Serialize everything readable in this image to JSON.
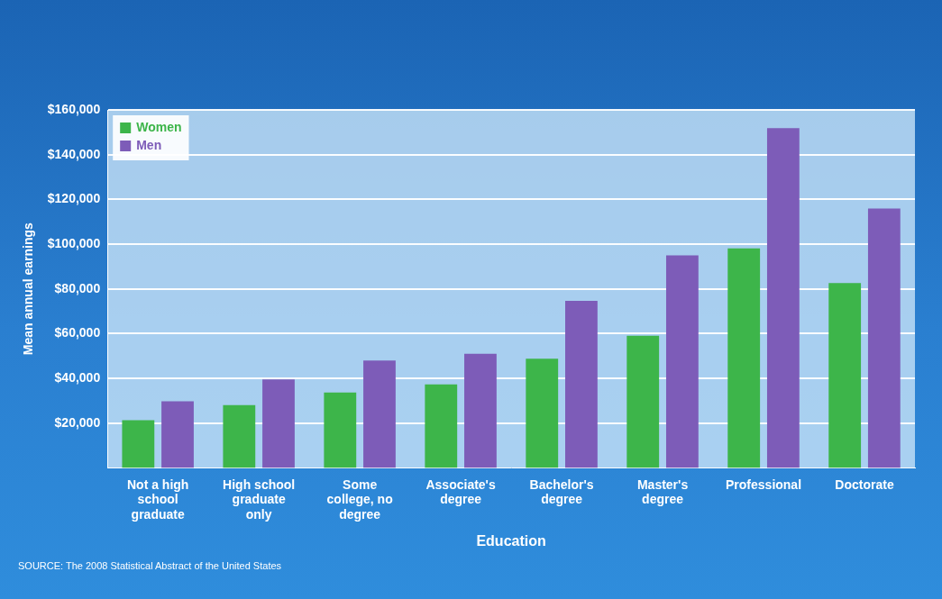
{
  "chart_data": {
    "type": "bar",
    "x_label": "Education",
    "y_label": "Mean annual earnings",
    "categories": [
      "Not a high school graduate",
      "High school graduate only",
      "Some college, no degree",
      "Associate's degree",
      "Bachelor's degree",
      "Master's degree",
      "Professional",
      "Doctorate"
    ],
    "series": [
      {
        "name": "Women",
        "color": "#3db54a",
        "values": [
          21300,
          28000,
          33700,
          37300,
          48800,
          59000,
          98100,
          82600
        ]
      },
      {
        "name": "Men",
        "color": "#7d5cb8",
        "values": [
          29800,
          39500,
          48000,
          51000,
          74600,
          95000,
          151800,
          115900
        ]
      }
    ],
    "ylim": [
      0,
      160000
    ],
    "yticks": [
      {
        "value": 20000,
        "label": "$20,000"
      },
      {
        "value": 40000,
        "label": "$40,000"
      },
      {
        "value": 60000,
        "label": "$60,000"
      },
      {
        "value": 80000,
        "label": "$80,000"
      },
      {
        "value": 100000,
        "label": "$100,000"
      },
      {
        "value": 120000,
        "label": "$120,000"
      },
      {
        "value": 140000,
        "label": "$140,000"
      },
      {
        "value": 160000,
        "label": "$160,000"
      }
    ],
    "grid": true,
    "legend": "upper left",
    "annotations": [
      "SOURCE: The 2008 Statistical Abstract of the United States"
    ]
  }
}
